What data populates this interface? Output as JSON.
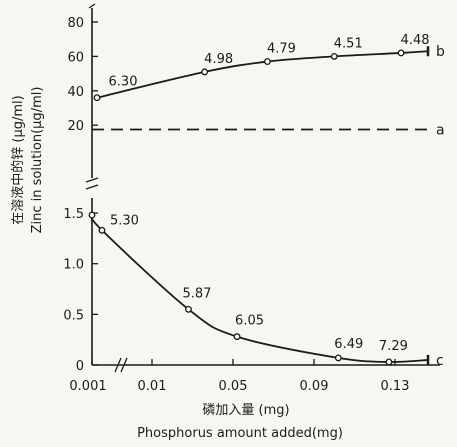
{
  "chart_data": {
    "type": "line",
    "xlabel_cn": "磷加入量 (mg)",
    "xlabel_en": "Phosphorus amount added(mg)",
    "ylabel_cn": "在溶液中的锌 (µg/ml)",
    "ylabel_en": "Zinc in solution(µg/ml)",
    "x_ticks": [
      "0.001",
      "0.01",
      "0.05",
      "0.09",
      "0.13"
    ],
    "y_ticks_upper": [
      "20",
      "40",
      "60",
      "80"
    ],
    "y_ticks_lower": [
      "0",
      "0.5",
      "1.0",
      "1.5"
    ],
    "series": [
      {
        "name": "b",
        "x": [
          0.003,
          0.036,
          0.067,
          0.1,
          0.133
        ],
        "y": [
          36,
          51,
          57,
          60,
          62
        ],
        "labels": [
          "6.30",
          "4.98",
          "4.79",
          "4.51",
          "4.48"
        ],
        "end_y": 63
      },
      {
        "name": "a",
        "style": "dashed",
        "x": [
          0.0,
          0.15
        ],
        "y": [
          17.5,
          17.5
        ]
      },
      {
        "name": "c",
        "x": [
          0.001,
          0.005,
          0.028,
          0.052,
          0.102,
          0.127
        ],
        "y": [
          1.48,
          1.33,
          0.55,
          0.28,
          0.07,
          0.03
        ],
        "labels": [
          "",
          "5.30",
          "5.87",
          "6.05",
          "6.49",
          "7.29"
        ],
        "end_y": 0.05
      }
    ]
  }
}
